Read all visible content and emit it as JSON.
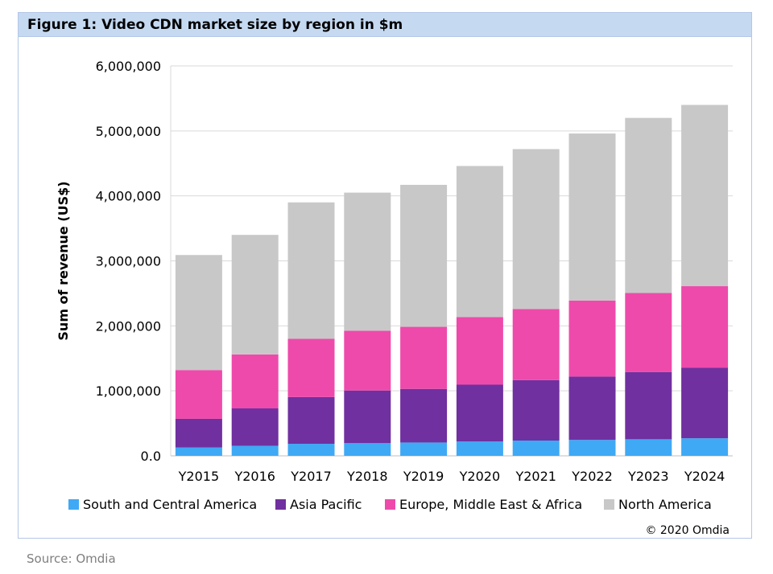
{
  "figure": {
    "title": "Figure 1: Video CDN market size by region in $m",
    "copyright": "© 2020 Omdia"
  },
  "source": "Source: Omdia",
  "colors": {
    "South and Central America": "#3fa9f5",
    "Asia Pacific": "#7030a0",
    "Europe, Middle East & Africa": "#ee4aab",
    "North America": "#c8c8c8"
  },
  "chart_data": {
    "type": "bar",
    "stacked": true,
    "ylabel": "Sum of revenue (US$)",
    "xlabel": "",
    "ylim": [
      0,
      6000000
    ],
    "yticks": [
      0,
      1000000,
      2000000,
      3000000,
      4000000,
      5000000,
      6000000
    ],
    "ytick_labels": [
      "0.0",
      "1,000,000",
      "2,000,000",
      "3,000,000",
      "4,000,000",
      "5,000,000",
      "6,000,000"
    ],
    "grid": "horizontal",
    "legend_position": "bottom",
    "categories": [
      "Y2015",
      "Y2016",
      "Y2017",
      "Y2018",
      "Y2019",
      "Y2020",
      "Y2021",
      "Y2022",
      "Y2023",
      "Y2024"
    ],
    "series": [
      {
        "name": "South and Central America",
        "values": [
          130000,
          155000,
          185000,
          195000,
          205000,
          220000,
          235000,
          245000,
          255000,
          270000
        ]
      },
      {
        "name": "Asia Pacific",
        "values": [
          440000,
          575000,
          720000,
          810000,
          825000,
          875000,
          930000,
          975000,
          1035000,
          1085000
        ]
      },
      {
        "name": "Europe, Middle East & Africa",
        "values": [
          750000,
          830000,
          895000,
          920000,
          955000,
          1040000,
          1095000,
          1170000,
          1215000,
          1255000
        ]
      },
      {
        "name": "North America",
        "values": [
          1770000,
          1840000,
          2100000,
          2125000,
          2185000,
          2325000,
          2460000,
          2570000,
          2695000,
          2790000
        ]
      }
    ]
  }
}
